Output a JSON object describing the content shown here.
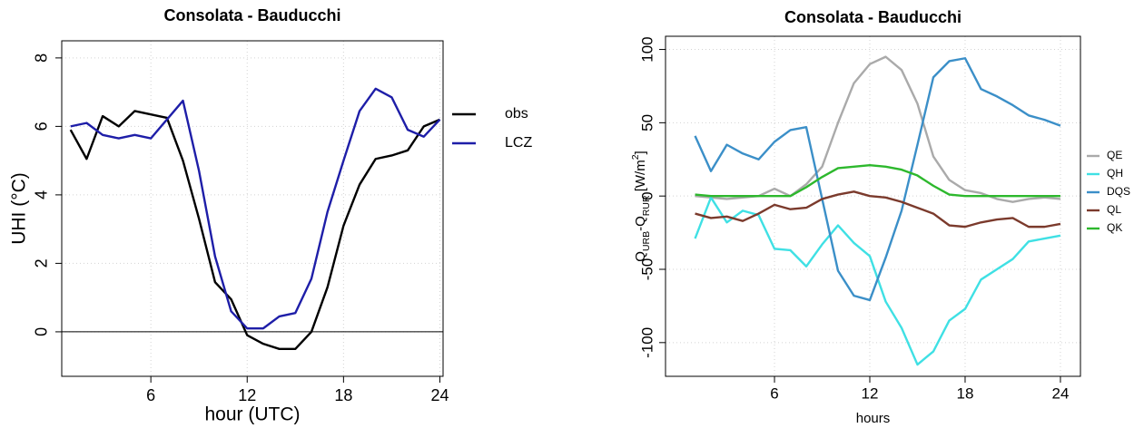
{
  "chart_data": [
    {
      "type": "line",
      "title": "Consolata - Bauducchi",
      "x_label": "hour (UTC)",
      "y_label": "UHI (°C)",
      "x": [
        1,
        2,
        3,
        4,
        5,
        6,
        7,
        8,
        9,
        10,
        11,
        12,
        13,
        14,
        15,
        16,
        17,
        18,
        19,
        20,
        21,
        22,
        23,
        24
      ],
      "series": [
        {
          "name": "obs",
          "color": "#000000",
          "values": [
            5.9,
            5.05,
            6.3,
            6.0,
            6.45,
            6.35,
            6.25,
            5.0,
            3.3,
            1.45,
            0.95,
            -0.1,
            -0.35,
            -0.5,
            -0.5,
            0.0,
            1.3,
            3.1,
            4.3,
            5.05,
            5.15,
            5.3,
            6.0,
            6.2
          ]
        },
        {
          "name": "LCZ",
          "color": "#1e1ea8",
          "values": [
            6.0,
            6.1,
            5.75,
            5.65,
            5.75,
            5.65,
            6.2,
            6.75,
            4.7,
            2.2,
            0.6,
            0.1,
            0.1,
            0.45,
            0.55,
            1.55,
            3.5,
            5.0,
            6.45,
            7.1,
            6.85,
            5.9,
            5.7,
            6.2
          ]
        }
      ],
      "xlim": [
        0.45,
        24.2
      ],
      "ylim": [
        -1.3,
        8.5
      ],
      "xticks": [
        6,
        12,
        18,
        24
      ],
      "yticks": [
        0,
        2,
        4,
        6,
        8
      ],
      "hline": 0,
      "grid": true,
      "legend": "right"
    },
    {
      "type": "line",
      "title": "Consolata - Bauducchi",
      "x_label": "hours",
      "y_label": [
        {
          "text": "Q"
        },
        {
          "text": "URB",
          "baseline": "sub"
        },
        {
          "text": "-Q"
        },
        {
          "text": "RUR",
          "baseline": "sub"
        },
        {
          "text": " [W/m"
        },
        {
          "text": "2",
          "baseline": "super"
        },
        {
          "text": "]"
        }
      ],
      "x": [
        1,
        2,
        3,
        4,
        5,
        6,
        7,
        8,
        9,
        10,
        11,
        12,
        13,
        14,
        15,
        16,
        17,
        18,
        19,
        20,
        21,
        22,
        23,
        24
      ],
      "series": [
        {
          "name": "QE",
          "color": "#aaaaaa",
          "values": [
            0,
            -1,
            -2,
            -1,
            0,
            5,
            0,
            8,
            20,
            50,
            77,
            90,
            95,
            86,
            63,
            27,
            11,
            4,
            2,
            -2,
            -4,
            -2,
            -1,
            -2
          ]
        },
        {
          "name": "QH",
          "color": "#3fe0e4",
          "values": [
            -29,
            -1,
            -18,
            -10,
            -13,
            -36,
            -37,
            -48,
            -33,
            -20,
            -32,
            -41,
            -72,
            -90,
            -115,
            -106,
            -85,
            -77,
            -57,
            -50,
            -43,
            -31,
            -29,
            -27
          ]
        },
        {
          "name": "DQS",
          "color": "#3b8fc8",
          "values": [
            41,
            17,
            35,
            29,
            25,
            37,
            45,
            47,
            -2,
            -51,
            -68,
            -71,
            -42,
            -10,
            35,
            81,
            92,
            94,
            73,
            68,
            62,
            55,
            52,
            48
          ]
        },
        {
          "name": "QL",
          "color": "#7b3a2c",
          "values": [
            -12,
            -15,
            -14,
            -17,
            -12,
            -6,
            -9,
            -8,
            -2,
            1,
            3,
            0,
            -1,
            -4,
            -8,
            -12,
            -20,
            -21,
            -18,
            -16,
            -15,
            -21,
            -21,
            -19
          ]
        },
        {
          "name": "QK",
          "color": "#2db82d",
          "values": [
            1,
            0,
            0,
            0,
            0,
            0,
            0,
            6,
            13,
            19,
            20,
            21,
            20,
            18,
            14,
            7,
            1,
            0,
            0,
            0,
            0,
            0,
            0,
            0
          ]
        }
      ],
      "xlim": [
        -0.86,
        25.26
      ],
      "ylim": [
        -123,
        109
      ],
      "xticks": [
        6,
        12,
        18,
        24
      ],
      "yticks": [
        -100,
        -50,
        0,
        50,
        100
      ],
      "grid": true,
      "legend": "right"
    }
  ]
}
